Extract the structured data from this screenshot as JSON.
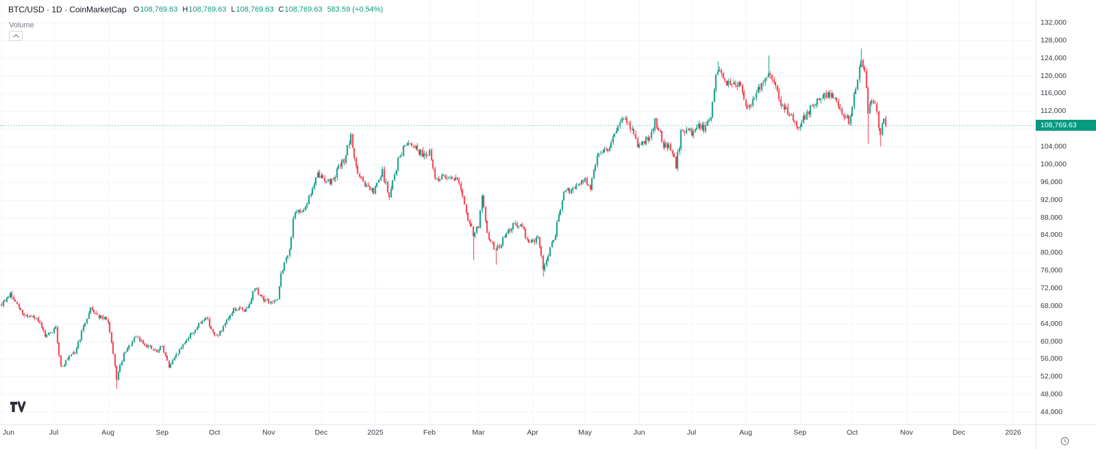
{
  "header": {
    "title": "BTC/USD · 1D · CoinMarketCap",
    "ohlc": {
      "o_label": "O",
      "o": "108,769.63",
      "h_label": "H",
      "h": "108,769.63",
      "l_label": "L",
      "l": "108,769.63",
      "c_label": "C",
      "c": "108,769.63"
    },
    "change": "583.59 (+0.54%)",
    "volume_label": "Volume"
  },
  "colors": {
    "up": "#089981",
    "down": "#f23645",
    "grid": "#f0f3fa",
    "separator": "#e0e3eb",
    "axis_text": "#363a45",
    "muted_text": "#787b86",
    "title_text": "#131722",
    "badge_bg": "#089981",
    "background": "#ffffff",
    "current_price_line": "#089981"
  },
  "price_axis": {
    "labels": [
      "132,000",
      "128,000",
      "124,000",
      "120,000",
      "116,000",
      "112,000",
      "108,000",
      "104,000",
      "100,000",
      "96,000",
      "92,000",
      "88,000",
      "84,000",
      "80,000",
      "76,000",
      "72,000",
      "68,000",
      "64,000",
      "60,000",
      "56,000",
      "52,000",
      "48,000",
      "44,000"
    ],
    "max": 132000,
    "min": 44000,
    "step": 4000,
    "current_price_label": "108,769.63"
  },
  "time_axis": {
    "months": [
      {
        "label": "Jun",
        "day": 0
      },
      {
        "label": "Jul",
        "day": 30
      },
      {
        "label": "Aug",
        "day": 61
      },
      {
        "label": "Sep",
        "day": 92
      },
      {
        "label": "Oct",
        "day": 122
      },
      {
        "label": "Nov",
        "day": 153
      },
      {
        "label": "Dec",
        "day": 183
      },
      {
        "label": "2025",
        "day": 214
      },
      {
        "label": "Feb",
        "day": 245
      },
      {
        "label": "Mar",
        "day": 273
      },
      {
        "label": "Apr",
        "day": 304
      },
      {
        "label": "May",
        "day": 334
      },
      {
        "label": "Jun",
        "day": 365
      },
      {
        "label": "Jul",
        "day": 395
      },
      {
        "label": "Aug",
        "day": 426
      },
      {
        "label": "Sep",
        "day": 457
      },
      {
        "label": "Oct",
        "day": 487
      },
      {
        "label": "Nov",
        "day": 518
      },
      {
        "label": "Dec",
        "day": 548
      },
      {
        "label": "2026",
        "day": 579
      }
    ]
  },
  "chart_data": {
    "type": "candlestick",
    "symbol": "BTC/USD",
    "interval": "1D",
    "source": "CoinMarketCap",
    "title": "BTC/USD · 1D · CoinMarketCap",
    "ylim": [
      44000,
      132000
    ],
    "price_step": 4000,
    "grid": true,
    "days_total": 579,
    "last_day": 506,
    "start_month": "Jun 2024",
    "current_price": 108769.63,
    "current_change_abs": 583.59,
    "current_change_pct": 0.54,
    "price_path_anchors": [
      [
        0,
        68300
      ],
      [
        5,
        70600
      ],
      [
        12,
        66200
      ],
      [
        21,
        64800
      ],
      [
        25,
        60900
      ],
      [
        31,
        62800
      ],
      [
        34,
        54200
      ],
      [
        42,
        57500
      ],
      [
        51,
        67600
      ],
      [
        56,
        65500
      ],
      [
        61,
        64600
      ],
      [
        66,
        51500
      ],
      [
        70,
        57000
      ],
      [
        77,
        60900
      ],
      [
        82,
        59400
      ],
      [
        89,
        57500
      ],
      [
        92,
        59000
      ],
      [
        96,
        54200
      ],
      [
        106,
        60500
      ],
      [
        112,
        63200
      ],
      [
        117,
        65600
      ],
      [
        122,
        61000
      ],
      [
        126,
        62300
      ],
      [
        133,
        67300
      ],
      [
        140,
        67000
      ],
      [
        145,
        72000
      ],
      [
        150,
        69500
      ],
      [
        153,
        68800
      ],
      [
        158,
        69000
      ],
      [
        160,
        75500
      ],
      [
        165,
        80500
      ],
      [
        167,
        88000
      ],
      [
        174,
        90500
      ],
      [
        181,
        97500
      ],
      [
        186,
        96500
      ],
      [
        188,
        95800
      ],
      [
        196,
        101000
      ],
      [
        200,
        106000
      ],
      [
        204,
        97500
      ],
      [
        209,
        95000
      ],
      [
        213,
        93500
      ],
      [
        214,
        94500
      ],
      [
        218,
        98200
      ],
      [
        222,
        92500
      ],
      [
        227,
        101000
      ],
      [
        232,
        105000
      ],
      [
        236,
        104500
      ],
      [
        240,
        102500
      ],
      [
        245,
        102400
      ],
      [
        248,
        97000
      ],
      [
        251,
        96800
      ],
      [
        256,
        97500
      ],
      [
        262,
        96200
      ],
      [
        266,
        88500
      ],
      [
        270,
        84300
      ],
      [
        273,
        86000
      ],
      [
        275,
        92500
      ],
      [
        278,
        84000
      ],
      [
        283,
        80500
      ],
      [
        288,
        83500
      ],
      [
        293,
        86500
      ],
      [
        298,
        85500
      ],
      [
        302,
        82300
      ],
      [
        304,
        82500
      ],
      [
        307,
        83500
      ],
      [
        310,
        76500
      ],
      [
        313,
        79500
      ],
      [
        317,
        84500
      ],
      [
        322,
        93500
      ],
      [
        328,
        94500
      ],
      [
        334,
        96500
      ],
      [
        337,
        94200
      ],
      [
        341,
        102500
      ],
      [
        347,
        103500
      ],
      [
        351,
        106500
      ],
      [
        355,
        110500
      ],
      [
        360,
        108500
      ],
      [
        364,
        104500
      ],
      [
        365,
        104600
      ],
      [
        370,
        105500
      ],
      [
        374,
        110000
      ],
      [
        379,
        104500
      ],
      [
        383,
        103500
      ],
      [
        386,
        99500
      ],
      [
        389,
        107000
      ],
      [
        394,
        107500
      ],
      [
        395,
        107200
      ],
      [
        398,
        108800
      ],
      [
        402,
        108000
      ],
      [
        406,
        111000
      ],
      [
        409,
        119500
      ],
      [
        410,
        121500
      ],
      [
        414,
        119000
      ],
      [
        418,
        117500
      ],
      [
        423,
        118500
      ],
      [
        426,
        113200
      ],
      [
        430,
        114500
      ],
      [
        436,
        119000
      ],
      [
        439,
        121000
      ],
      [
        443,
        117300
      ],
      [
        447,
        113000
      ],
      [
        451,
        111500
      ],
      [
        456,
        108800
      ],
      [
        457,
        108900
      ],
      [
        461,
        111500
      ],
      [
        466,
        113800
      ],
      [
        471,
        115800
      ],
      [
        476,
        115500
      ],
      [
        481,
        112000
      ],
      [
        485,
        109500
      ],
      [
        487,
        112500
      ],
      [
        489,
        117500
      ],
      [
        492,
        123500
      ],
      [
        494,
        121500
      ],
      [
        496,
        112000
      ],
      [
        499,
        114500
      ],
      [
        501,
        111500
      ],
      [
        503,
        106500
      ],
      [
        505,
        110500
      ],
      [
        506,
        108770
      ]
    ],
    "wick_events": [
      {
        "day": 66,
        "low": 49300
      },
      {
        "day": 270,
        "low": 78300
      },
      {
        "day": 283,
        "low": 77200
      },
      {
        "day": 310,
        "low": 74600
      },
      {
        "day": 410,
        "high": 123200
      },
      {
        "day": 439,
        "high": 124500
      },
      {
        "day": 492,
        "high": 126200
      },
      {
        "day": 496,
        "low": 104600
      },
      {
        "day": 503,
        "low": 104000
      }
    ]
  }
}
